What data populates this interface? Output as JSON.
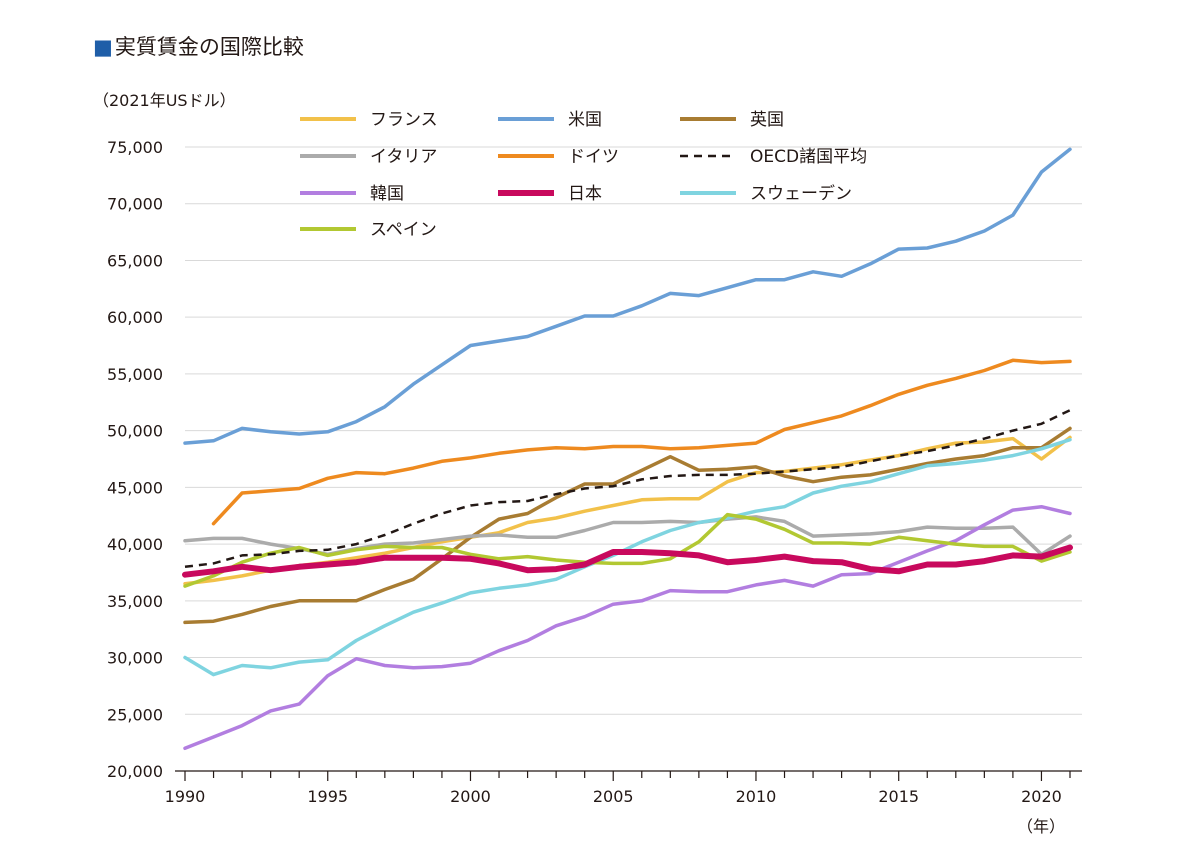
{
  "title": "実質賃金の国際比較",
  "title_marker": "■",
  "unit_label": "（2021年USドル）",
  "chart_data": {
    "type": "line",
    "title": "実質賃金の国際比較",
    "ylabel": "（2021年USドル）",
    "xlabel": "（年）",
    "x": [
      1990,
      1991,
      1992,
      1993,
      1994,
      1995,
      1996,
      1997,
      1998,
      1999,
      2000,
      2001,
      2002,
      2003,
      2004,
      2005,
      2006,
      2007,
      2008,
      2009,
      2010,
      2011,
      2012,
      2013,
      2014,
      2015,
      2016,
      2017,
      2018,
      2019,
      2020,
      2021
    ],
    "xlim": [
      1990,
      2021
    ],
    "ylim": [
      20000,
      75000
    ],
    "grid": "horizontal",
    "legend_position": "top",
    "x_ticks": [
      1990,
      1995,
      2000,
      2005,
      2010,
      2015,
      2020
    ],
    "x_tick_labels": [
      "1990",
      "1995",
      "2000",
      "2005",
      "2010",
      "2015",
      "2020"
    ],
    "y_ticks": [
      20000,
      25000,
      30000,
      35000,
      40000,
      45000,
      50000,
      55000,
      60000,
      65000,
      70000,
      75000
    ],
    "y_tick_labels": [
      "20,000",
      "25,000",
      "30,000",
      "35,000",
      "40,000",
      "45,000",
      "50,000",
      "55,000",
      "60,000",
      "65,000",
      "70,000",
      "75,000"
    ],
    "series": [
      {
        "name": "フランス",
        "color": "#f2c14a",
        "width": 3.5,
        "dash": "",
        "values": [
          36500,
          36800,
          37200,
          37700,
          38100,
          38400,
          38800,
          39200,
          39700,
          40200,
          40600,
          41000,
          41900,
          42300,
          42900,
          43400,
          43900,
          44000,
          44000,
          45500,
          46300,
          46400,
          46700,
          47000,
          47400,
          47800,
          48400,
          48900,
          49000,
          49300,
          47500,
          49400
        ]
      },
      {
        "name": "米国",
        "color": "#6a9fd6",
        "width": 3.5,
        "dash": "",
        "values": [
          48900,
          49100,
          50200,
          49900,
          49700,
          49900,
          50800,
          52100,
          54100,
          55800,
          57500,
          57900,
          58300,
          59200,
          60100,
          60100,
          61000,
          62100,
          61900,
          62600,
          63300,
          63300,
          64000,
          63600,
          64700,
          66000,
          66100,
          66700,
          67600,
          69000,
          72800,
          74800
        ]
      },
      {
        "name": "英国",
        "color": "#a87c32",
        "width": 3.5,
        "dash": "",
        "values": [
          33100,
          33200,
          33800,
          34500,
          35000,
          35000,
          35000,
          36000,
          36900,
          38700,
          40600,
          42200,
          42700,
          44100,
          45300,
          45300,
          46500,
          47700,
          46500,
          46600,
          46800,
          46000,
          45500,
          45900,
          46100,
          46600,
          47100,
          47500,
          47800,
          48500,
          48500,
          50200
        ]
      },
      {
        "name": "イタリア",
        "color": "#ababab",
        "width": 3.5,
        "dash": "",
        "values": [
          40300,
          40500,
          40500,
          40000,
          39600,
          39100,
          39600,
          40000,
          40100,
          40400,
          40700,
          40800,
          40600,
          40600,
          41200,
          41900,
          41900,
          42000,
          41900,
          42200,
          42400,
          42000,
          40700,
          40800,
          40900,
          41100,
          41500,
          41400,
          41400,
          41500,
          39100,
          40700
        ]
      },
      {
        "name": "ドイツ",
        "color": "#ee8a1f",
        "width": 3.5,
        "dash": "",
        "values": [
          null,
          41800,
          44500,
          44700,
          44900,
          45800,
          46300,
          46200,
          46700,
          47300,
          47600,
          48000,
          48300,
          48500,
          48400,
          48600,
          48600,
          48400,
          48500,
          48700,
          48900,
          50100,
          50700,
          51300,
          52200,
          53200,
          54000,
          54600,
          55300,
          56200,
          56000,
          56100
        ]
      },
      {
        "name": "OECD諸国平均",
        "color": "#231815",
        "width": 2.5,
        "dash": "8 6",
        "values": [
          38000,
          38300,
          39000,
          39100,
          39400,
          39500,
          40000,
          40800,
          41800,
          42700,
          43400,
          43700,
          43800,
          44400,
          44900,
          45100,
          45700,
          46000,
          46100,
          46100,
          46200,
          46400,
          46600,
          46800,
          47300,
          47800,
          48200,
          48700,
          49300,
          50000,
          50600,
          51800
        ]
      },
      {
        "name": "韓国",
        "color": "#b27ee0",
        "width": 3.5,
        "dash": "",
        "values": [
          22000,
          23000,
          24000,
          25300,
          25900,
          28400,
          29900,
          29300,
          29100,
          29200,
          29500,
          30600,
          31500,
          32800,
          33600,
          34700,
          35000,
          35900,
          35800,
          35800,
          36400,
          36800,
          36300,
          37300,
          37400,
          38400,
          39400,
          40300,
          41700,
          43000,
          43300,
          42700
        ]
      },
      {
        "name": "日本",
        "color": "#c8095d",
        "width": 6,
        "dash": "",
        "values": [
          37300,
          37600,
          38000,
          37700,
          38000,
          38200,
          38400,
          38800,
          38800,
          38800,
          38700,
          38300,
          37700,
          37800,
          38200,
          39300,
          39300,
          39200,
          39000,
          38400,
          38600,
          38900,
          38500,
          38400,
          37800,
          37600,
          38200,
          38200,
          38500,
          39000,
          38900,
          39700
        ]
      },
      {
        "name": "スウェーデン",
        "color": "#7fd4e0",
        "width": 3.5,
        "dash": "",
        "values": [
          30000,
          28500,
          29300,
          29100,
          29600,
          29800,
          31500,
          32800,
          34000,
          34800,
          35700,
          36100,
          36400,
          36900,
          38000,
          39000,
          40200,
          41200,
          41900,
          42300,
          42900,
          43300,
          44500,
          45100,
          45500,
          46200,
          46900,
          47100,
          47400,
          47800,
          48400,
          49200
        ]
      },
      {
        "name": "スペイン",
        "color": "#b2c832",
        "width": 3.5,
        "dash": "",
        "values": [
          36300,
          37200,
          38400,
          39200,
          39700,
          39000,
          39500,
          39800,
          39700,
          39700,
          39100,
          38700,
          38900,
          38600,
          38400,
          38300,
          38300,
          38700,
          40200,
          42600,
          42200,
          41300,
          40100,
          40100,
          40000,
          40600,
          40300,
          40000,
          39800,
          39800,
          38500,
          39300
        ]
      }
    ]
  },
  "x_unit_label": "（年）"
}
